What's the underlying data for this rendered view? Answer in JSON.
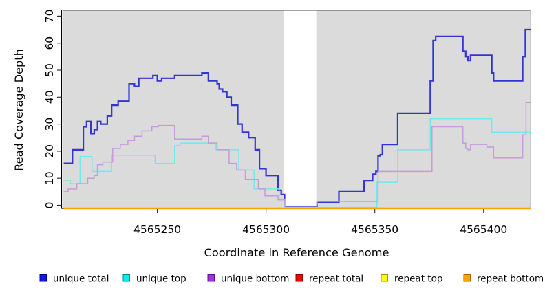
{
  "chart_data": {
    "type": "line",
    "step": true,
    "title": "",
    "xlabel": "Coordinate in Reference Genome",
    "ylabel": "Read Coverage Depth",
    "xlim": [
      4565206.8,
      4565421.6
    ],
    "ylim": [
      0,
      70
    ],
    "grid": false,
    "legend_position": "bottom",
    "plot_bg": "#DBDBDB",
    "gap_region": {
      "start": 4565308,
      "end": 4565323.1,
      "color": "#FFFFFF"
    },
    "x_ticks": [
      {
        "value": 4565250,
        "label": "4565250"
      },
      {
        "value": 4565300,
        "label": "4565300"
      },
      {
        "value": 4565350,
        "label": "4565350"
      },
      {
        "value": 4565400,
        "label": "4565400"
      }
    ],
    "y_ticks": [
      {
        "value": 0,
        "label": "0"
      },
      {
        "value": 10,
        "label": "10"
      },
      {
        "value": 20,
        "label": "20"
      },
      {
        "value": 30,
        "label": "30"
      },
      {
        "value": 40,
        "label": "40"
      },
      {
        "value": 50,
        "label": "50"
      },
      {
        "value": 60,
        "label": "60"
      },
      {
        "value": 70,
        "label": "70"
      }
    ],
    "series": [
      {
        "name": "unique total",
        "color": "#3434D2",
        "swatch": "#1414EE",
        "swatch_border": "#000090",
        "width": 2.2,
        "points": [
          [
            4565207,
            15.5
          ],
          [
            4565211,
            20.5
          ],
          [
            4565216,
            29
          ],
          [
            4565217.5,
            31
          ],
          [
            4565219.5,
            26.5
          ],
          [
            4565221,
            28
          ],
          [
            4565222.5,
            31
          ],
          [
            4565224,
            30
          ],
          [
            4565227,
            33
          ],
          [
            4565229,
            37
          ],
          [
            4565232,
            38.5
          ],
          [
            4565237,
            45
          ],
          [
            4565239.5,
            44
          ],
          [
            4565241.5,
            47
          ],
          [
            4565248,
            48
          ],
          [
            4565250,
            46
          ],
          [
            4565252,
            47
          ],
          [
            4565258,
            48
          ],
          [
            4565270.5,
            49
          ],
          [
            4565273.5,
            46
          ],
          [
            4565277.5,
            45
          ],
          [
            4565278.5,
            43
          ],
          [
            4565280,
            42
          ],
          [
            4565282,
            40
          ],
          [
            4565284,
            37
          ],
          [
            4565287,
            30
          ],
          [
            4565289,
            27
          ],
          [
            4565292,
            25
          ],
          [
            4565295,
            20.5
          ],
          [
            4565297,
            13.5
          ],
          [
            4565300,
            11
          ],
          [
            4565305.5,
            5.5
          ],
          [
            4565307,
            4
          ],
          [
            4565308.5,
            0.3
          ],
          [
            4565317.5,
            0
          ],
          [
            4565322.5,
            0.3
          ],
          [
            4565323.5,
            1
          ],
          [
            4565333.5,
            5
          ],
          [
            4565345,
            9
          ],
          [
            4565349,
            11.5
          ],
          [
            4565350.5,
            12.5
          ],
          [
            4565351.5,
            18.3
          ],
          [
            4565352.5,
            18.7
          ],
          [
            4565353.5,
            22.5
          ],
          [
            4565360.5,
            34
          ],
          [
            4565375.5,
            46
          ],
          [
            4565376.8,
            61
          ],
          [
            4565378,
            62.5
          ],
          [
            4565390.5,
            57
          ],
          [
            4565391.8,
            55
          ],
          [
            4565392.8,
            53.5
          ],
          [
            4565394,
            55.5
          ],
          [
            4565403.8,
            49
          ],
          [
            4565404.6,
            46
          ],
          [
            4565418,
            55
          ],
          [
            4565419.2,
            65
          ]
        ]
      },
      {
        "name": "unique top",
        "color": "#6FE9E9",
        "swatch": "#00F0F0",
        "swatch_border": "#008B8B",
        "width": 1.5,
        "points": [
          [
            4565207,
            9
          ],
          [
            4565210,
            8
          ],
          [
            4565214.5,
            18
          ],
          [
            4565220,
            12.5
          ],
          [
            4565229,
            18.5
          ],
          [
            4565249,
            15.5
          ],
          [
            4565258,
            22
          ],
          [
            4565260.5,
            23
          ],
          [
            4565277,
            20.5
          ],
          [
            4565287.5,
            13
          ],
          [
            4565294.5,
            6
          ],
          [
            4565306,
            2
          ],
          [
            4565308.5,
            0
          ],
          [
            4565351,
            8.5
          ],
          [
            4565360.5,
            20.5
          ],
          [
            4565375.5,
            32
          ],
          [
            4565403.8,
            27
          ]
        ]
      },
      {
        "name": "unique bottom",
        "color": "#C79ADB",
        "swatch": "#A232E6",
        "swatch_border": "#5E1387",
        "width": 1.5,
        "points": [
          [
            4565207,
            5
          ],
          [
            4565209,
            6
          ],
          [
            4565213,
            8
          ],
          [
            4565218,
            10
          ],
          [
            4565221,
            11
          ],
          [
            4565222.5,
            15
          ],
          [
            4565225,
            16
          ],
          [
            4565229.5,
            21
          ],
          [
            4565233,
            22.5
          ],
          [
            4565236.5,
            24
          ],
          [
            4565239.5,
            25.5
          ],
          [
            4565243,
            27.5
          ],
          [
            4565247.5,
            29
          ],
          [
            4565250.5,
            29.5
          ],
          [
            4565258,
            24.5
          ],
          [
            4565270.5,
            25.5
          ],
          [
            4565273.5,
            23
          ],
          [
            4565277.5,
            20.5
          ],
          [
            4565283,
            15.5
          ],
          [
            4565286.5,
            13
          ],
          [
            4565290.5,
            9.5
          ],
          [
            4565296.5,
            6
          ],
          [
            4565299.5,
            3.5
          ],
          [
            4565305.5,
            2
          ],
          [
            4565308.5,
            0.3
          ],
          [
            4565317.5,
            0
          ],
          [
            4565322.5,
            0.3
          ],
          [
            4565323.5,
            1.4
          ],
          [
            4565351.5,
            12.5
          ],
          [
            4565376.3,
            29
          ],
          [
            4565390.5,
            23
          ],
          [
            4565391.8,
            21
          ],
          [
            4565392.8,
            20.5
          ],
          [
            4565394,
            22.5
          ],
          [
            4565401.5,
            21.5
          ],
          [
            4565404.6,
            17.5
          ],
          [
            4565418,
            26
          ],
          [
            4565419.5,
            38
          ]
        ]
      },
      {
        "name": "repeat total",
        "color": "#DD1111",
        "swatch": "#FF0000",
        "swatch_border": "#8B0000",
        "width": 1.5,
        "points": [
          [
            4565207,
            0
          ]
        ]
      },
      {
        "name": "repeat top",
        "color": "#F5F500",
        "swatch": "#FFFF00",
        "swatch_border": "#9A9A00",
        "width": 1.5,
        "points": [
          [
            4565207,
            0
          ]
        ]
      },
      {
        "name": "repeat bottom",
        "color": "#FFA200",
        "swatch": "#FFA500",
        "swatch_border": "#A66300",
        "width": 2,
        "points": [
          [
            4565207,
            0
          ]
        ]
      }
    ]
  }
}
